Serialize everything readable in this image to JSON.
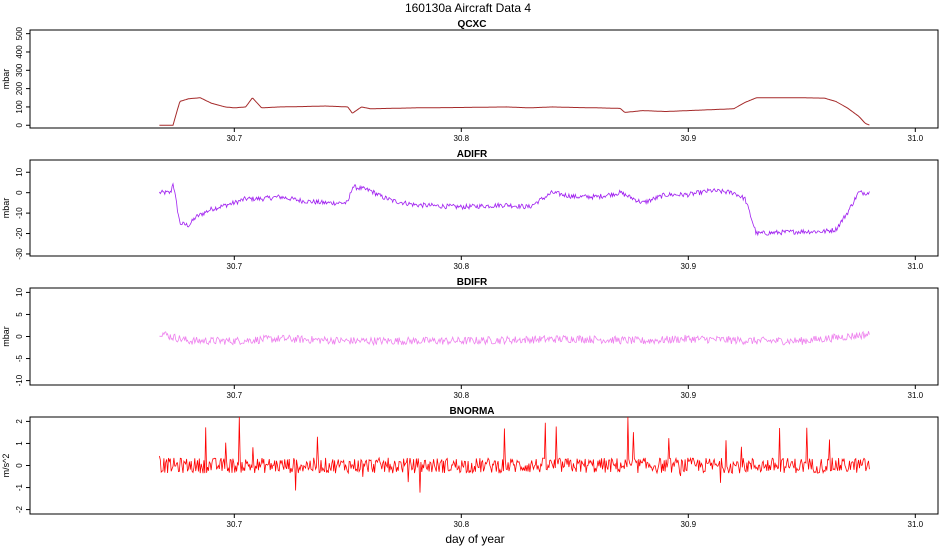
{
  "title": "160130a   Aircraft Data 4",
  "xlabel": "day of year",
  "chart_data": [
    {
      "type": "line",
      "title": "QCXC",
      "ylabel": "mbar",
      "color": "#a52a2a",
      "xlim": [
        30.61,
        31.01
      ],
      "ylim": [
        -15,
        520
      ],
      "xticks": [
        "30.7",
        "30.8",
        "30.9",
        "31.0"
      ],
      "yticks": [
        "0",
        "100",
        "200",
        "300",
        "400",
        "500"
      ],
      "noise": 0.0,
      "series": [
        {
          "x": [
            30.667,
            30.673,
            30.676,
            30.68,
            30.685,
            30.69,
            30.696,
            30.7,
            30.705,
            30.708,
            30.712,
            30.72,
            30.73,
            30.74,
            30.75,
            30.752,
            30.756,
            30.76,
            30.78,
            30.8,
            30.82,
            30.83,
            30.84,
            30.85,
            30.86,
            30.87,
            30.872,
            30.88,
            30.89,
            30.9,
            30.91,
            30.92,
            30.925,
            30.93,
            30.95,
            30.96,
            30.965,
            30.97,
            30.975,
            30.978,
            30.98
          ],
          "y": [
            0,
            0,
            130,
            145,
            150,
            120,
            100,
            95,
            100,
            150,
            95,
            100,
            102,
            105,
            100,
            65,
            100,
            90,
            95,
            97,
            100,
            95,
            100,
            97,
            95,
            92,
            70,
            80,
            75,
            80,
            85,
            90,
            125,
            150,
            150,
            148,
            130,
            95,
            50,
            10,
            0
          ]
        }
      ]
    },
    {
      "type": "line",
      "title": "ADIFR",
      "ylabel": "mbar",
      "color": "#a020f0",
      "xlim": [
        30.61,
        31.01
      ],
      "ylim": [
        -31,
        16
      ],
      "xticks": [
        "30.7",
        "30.8",
        "30.9",
        "31.0"
      ],
      "yticks": [
        "-30",
        "-20",
        "-10",
        "0",
        "10"
      ],
      "noise": 1.2,
      "series": [
        {
          "x": [
            30.667,
            30.672,
            30.673,
            30.676,
            30.68,
            30.683,
            30.69,
            30.7,
            30.705,
            30.712,
            30.72,
            30.73,
            30.74,
            30.75,
            30.752,
            30.76,
            30.765,
            30.77,
            30.78,
            30.8,
            30.82,
            30.83,
            30.84,
            30.85,
            30.86,
            30.87,
            30.88,
            30.89,
            30.9,
            30.91,
            30.92,
            30.925,
            30.93,
            30.95,
            30.96,
            30.965,
            30.97,
            30.975,
            30.98
          ],
          "y": [
            0,
            0,
            5,
            -15,
            -16,
            -12,
            -8,
            -5,
            -3,
            -3,
            -2,
            -4,
            -5,
            -5,
            3,
            1,
            -2,
            -4,
            -6,
            -7,
            -6,
            -7,
            0,
            -2,
            -2,
            0,
            -5,
            -1,
            -1,
            1,
            0,
            -3,
            -20,
            -19,
            -19,
            -18,
            -10,
            0,
            0
          ]
        }
      ]
    },
    {
      "type": "line",
      "title": "BDIFR",
      "ylabel": "mbar",
      "color": "#ee82ee",
      "xlim": [
        30.61,
        31.01
      ],
      "ylim": [
        -11,
        11
      ],
      "xticks": [
        "30.7",
        "30.8",
        "30.9",
        "31.0"
      ],
      "yticks": [
        "-10",
        "-5",
        "0",
        "5",
        "10"
      ],
      "noise": 0.9,
      "series": [
        {
          "x": [
            30.667,
            30.672,
            30.68,
            30.7,
            30.72,
            30.75,
            30.8,
            30.85,
            30.88,
            30.9,
            30.93,
            30.95,
            30.97,
            30.98
          ],
          "y": [
            1,
            0,
            -1,
            -1,
            -0.5,
            -1,
            -1,
            -0.5,
            -1,
            -0.5,
            -1,
            -1,
            0,
            0.5
          ]
        }
      ]
    },
    {
      "type": "line",
      "title": "BNORMA",
      "ylabel": "m/s^2",
      "color": "#ff0000",
      "xlim": [
        30.61,
        31.01
      ],
      "ylim": [
        -2.2,
        2.2
      ],
      "xticks": [
        "30.7",
        "30.8",
        "30.9",
        "31.0"
      ],
      "yticks": [
        "-2",
        "-1",
        "0",
        "1",
        "2"
      ],
      "noise": 0.35,
      "spikes": true,
      "series": [
        {
          "x": [
            30.667,
            30.671,
            30.98
          ],
          "y": [
            0,
            0,
            0
          ]
        }
      ]
    }
  ]
}
